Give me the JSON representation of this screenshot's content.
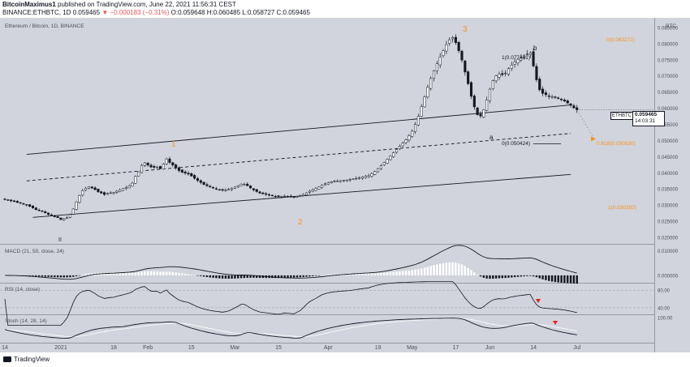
{
  "header": {
    "author": "BitcoinMaximus1",
    "published": "published on TradingView.com, June 22, 2021 11:56:31 CEST",
    "symbol_line": "BINANCE:ETHBTC, 1D",
    "last": "0.059465",
    "change": "−0.000183 (−0.31%)",
    "ohlc": "O:0.059648 H:0.060485 L:0.058727 C:0.059465"
  },
  "chart_title": "Ethereum / Bitcoin, 1D, BINANCE",
  "quote_currency": "BTC",
  "price_tag": {
    "symbol": "ETHBTC",
    "value": "0.059465",
    "countdown": "14:03:31"
  },
  "annotations": {
    "wave1": "1",
    "wave2": "2",
    "wave3": "3",
    "wave_ii": "II",
    "wave_a": "a",
    "wave_b": "b",
    "fib_top": "0(0.083271)",
    "fib_b": "1(0.077441)",
    "fib_0": "0(0.050424)",
    "fib_618": "0.618(0.050530)",
    "fib_1": "1(0.030292)"
  },
  "indicators": {
    "macd": "MACD (21, 50, close, 24)",
    "rsi": "RSI (14, close)",
    "stoch": "Stoch (14, 28, 14)"
  },
  "footer": {
    "brand": "TradingView"
  },
  "colors": {
    "up": "#ffffff",
    "down": "#131722",
    "accent": "#f7931a",
    "bg": "#d1d4dc",
    "rsi_marker": "#ef1a1a"
  },
  "chart_data": {
    "type": "candlestick",
    "title": "Ethereum / Bitcoin, 1D, BINANCE",
    "y_axis": {
      "ticks": [
        "0.085000",
        "0.080000",
        "0.075000",
        "0.070000",
        "0.065000",
        "0.060000",
        "0.055000",
        "0.050000",
        "0.045000",
        "0.040000",
        "0.035000",
        "0.030000",
        "0.025000",
        "0.020000"
      ],
      "values": [
        0.085,
        0.08,
        0.075,
        0.07,
        0.065,
        0.06,
        0.055,
        0.05,
        0.045,
        0.04,
        0.035,
        0.03,
        0.025,
        0.02
      ],
      "range": [
        0.018,
        0.088
      ]
    },
    "x_axis": {
      "labels": [
        "14",
        "2021",
        "18",
        "Feb",
        "15",
        "Mar",
        "15",
        "Apr",
        "19",
        "May",
        "17",
        "Jun",
        "14",
        "Jul"
      ],
      "positions": [
        0,
        18,
        35,
        46,
        60,
        74,
        88,
        104,
        120,
        131,
        145,
        156,
        170,
        184
      ]
    },
    "closes": [
      0.0318,
      0.0316,
      0.0313,
      0.0311,
      0.0308,
      0.0306,
      0.0303,
      0.03,
      0.0296,
      0.0291,
      0.0286,
      0.0283,
      0.0281,
      0.0276,
      0.0271,
      0.0268,
      0.0264,
      0.0261,
      0.0255,
      0.0258,
      0.0262,
      0.0271,
      0.0288,
      0.031,
      0.033,
      0.0345,
      0.0352,
      0.0357,
      0.0353,
      0.0348,
      0.0341,
      0.0337,
      0.0333,
      0.0336,
      0.0338,
      0.0339,
      0.0343,
      0.0347,
      0.0351,
      0.0355,
      0.036,
      0.0368,
      0.0389,
      0.0403,
      0.0423,
      0.0431,
      0.0424,
      0.0418,
      0.0417,
      0.0418,
      0.0413,
      0.0427,
      0.0443,
      0.0432,
      0.0424,
      0.0415,
      0.0407,
      0.0402,
      0.0399,
      0.0396,
      0.039,
      0.0383,
      0.0376,
      0.037,
      0.0364,
      0.036,
      0.0356,
      0.0353,
      0.035,
      0.0348,
      0.0346,
      0.0347,
      0.0349,
      0.0352,
      0.0356,
      0.036,
      0.0365,
      0.0365,
      0.036,
      0.0353,
      0.0347,
      0.0342,
      0.0337,
      0.0335,
      0.0333,
      0.0331,
      0.0329,
      0.0327,
      0.0326,
      0.0327,
      0.0328,
      0.0327,
      0.0326,
      0.0325,
      0.0327,
      0.0329,
      0.0333,
      0.0338,
      0.0343,
      0.0347,
      0.0351,
      0.0356,
      0.0362,
      0.0366,
      0.0369,
      0.0372,
      0.0374,
      0.0375,
      0.0376,
      0.0377,
      0.0378,
      0.0379,
      0.0381,
      0.0383,
      0.0385,
      0.0387,
      0.0389,
      0.0391,
      0.0397,
      0.0404,
      0.0413,
      0.0422,
      0.0432,
      0.0442,
      0.0452,
      0.0462,
      0.0472,
      0.0482,
      0.0492,
      0.0502,
      0.0515,
      0.0529,
      0.055,
      0.0575,
      0.0605,
      0.0635,
      0.0665,
      0.0692,
      0.0716,
      0.0738,
      0.0759,
      0.0778,
      0.0797,
      0.0812,
      0.0819,
      0.0803,
      0.0778,
      0.0749,
      0.0712,
      0.0676,
      0.0637,
      0.0604,
      0.058,
      0.0576,
      0.0595,
      0.0626,
      0.0659,
      0.0685,
      0.07,
      0.0706,
      0.0704,
      0.0709,
      0.0723,
      0.0734,
      0.0743,
      0.0751,
      0.0757,
      0.0762,
      0.0768,
      0.0771,
      0.0731,
      0.0688,
      0.0657,
      0.0646,
      0.0642,
      0.0638,
      0.0636,
      0.0634,
      0.0631,
      0.0626,
      0.0622,
      0.0616,
      0.0609,
      0.0601,
      0.0595
    ],
    "channel": {
      "upper": {
        "from": [
          7,
          0.0457
        ],
        "to": [
          182,
          0.061
        ]
      },
      "middle": {
        "from": [
          7,
          0.0375
        ],
        "to": [
          182,
          0.0522
        ]
      },
      "lower": {
        "from": [
          9,
          0.0262
        ],
        "to": [
          182,
          0.0395
        ]
      }
    },
    "target": 0.0505,
    "subplots": {
      "macd": {
        "ticks": [
          "0.010000",
          "0.000000"
        ],
        "values": [
          0.01,
          0.0
        ],
        "range": [
          -0.003,
          0.0125
        ]
      },
      "rsi": {
        "ticks": [
          "80.00",
          "40.00"
        ],
        "values": [
          80,
          40
        ],
        "range": [
          25,
          95
        ]
      },
      "stoch": {
        "ticks": [
          "100.00"
        ],
        "values": [
          100
        ],
        "range": [
          -5,
          110
        ]
      }
    }
  }
}
